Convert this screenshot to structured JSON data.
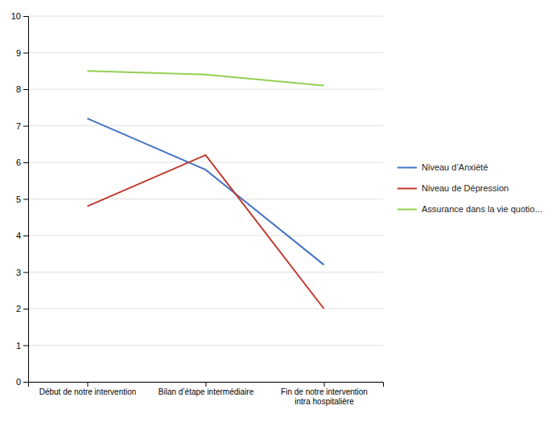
{
  "chart_data": {
    "type": "line",
    "categories": [
      "Début de notre intervention",
      "Bilan d’étape intermédiaire",
      "Fin de notre intervention\nintra hospitalière"
    ],
    "series": [
      {
        "name": "Niveau d’Anxiété",
        "color": "#4472C4",
        "values": [
          7.2,
          5.8,
          3.2
        ]
      },
      {
        "name": "Niveau de Dépression",
        "color": "#C0392B",
        "values": [
          4.8,
          6.2,
          2.0
        ]
      },
      {
        "name": "Assurance dans la vie quotio...",
        "color": "#92D050",
        "values": [
          8.5,
          8.4,
          8.1
        ]
      }
    ],
    "ylim": [
      0,
      10
    ],
    "yticks": [
      0,
      1,
      2,
      3,
      4,
      5,
      6,
      7,
      8,
      9,
      10
    ],
    "grid": true,
    "legend": "right"
  }
}
